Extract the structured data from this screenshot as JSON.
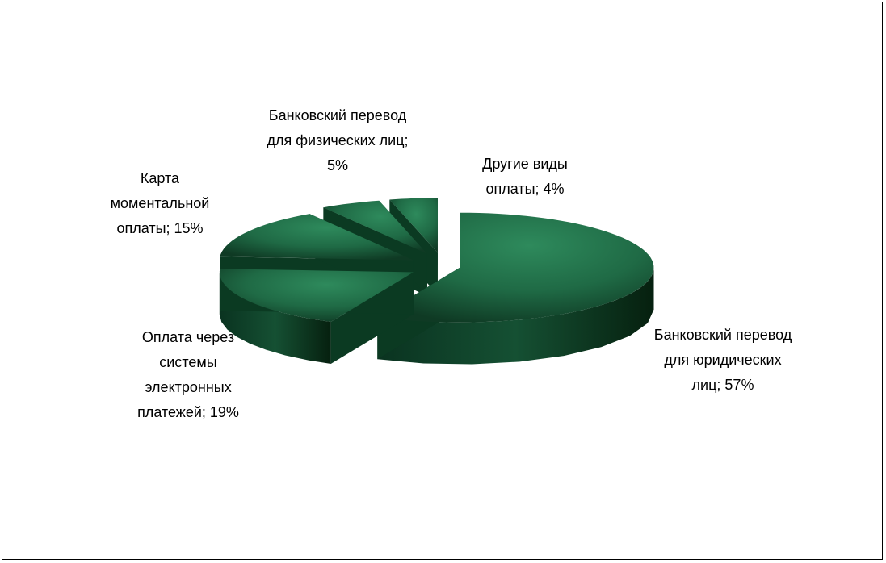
{
  "chart_data": {
    "type": "pie",
    "title": "",
    "slices": [
      {
        "label": "Банковский перевод\nдля юридических\nлиц; 57%",
        "value": 57
      },
      {
        "label": "Оплата через\nсистемы\nэлектронных\nплатежей; 19%",
        "value": 19
      },
      {
        "label": "Карта\nмоментальной\nоплаты; 15%",
        "value": 15
      },
      {
        "label": "Банковский перевод\nдля физических лиц;\n5%",
        "value": 5
      },
      {
        "label": "Другие виды\nоплаты; 4%",
        "value": 4
      }
    ],
    "legend": "none",
    "colors": {
      "top": "#2e8a5c",
      "top_dark": "#0f3a24",
      "side": "#0d3f26",
      "side_dark": "#06200f"
    }
  }
}
